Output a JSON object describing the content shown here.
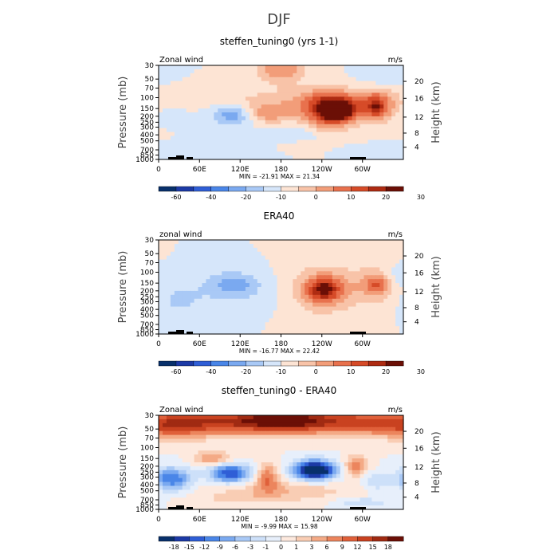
{
  "figure_title": "DJF",
  "chart_data": [
    {
      "type": "heatmap",
      "title": "steffen_tuning0 (yrs 1-1)",
      "left_label": "Zonal wind",
      "right_label": "m/s",
      "stats": "MIN = -21.91   MAX =  21.34",
      "ylabel": "Pressure (mb)",
      "ylabel_right": "Height (km)",
      "yticks": [
        "30",
        "50",
        "70",
        "100",
        "150",
        "200",
        "250",
        "300",
        "400",
        "500",
        "700",
        "850",
        "1000"
      ],
      "height_ticks": [
        "4",
        "8",
        "12",
        "16",
        "20"
      ],
      "xticks": [
        "0",
        "60E",
        "120E",
        "180",
        "120W",
        "60W"
      ],
      "levels": [
        -60,
        -40,
        -20,
        -10,
        0,
        10,
        20,
        30
      ],
      "level_labels": [
        "-60",
        "-40",
        "-20",
        "-10",
        "0",
        "10",
        "20",
        "30"
      ],
      "bins": 14,
      "blobs": [
        {
          "lon": 157,
          "p": 180,
          "amp": 3,
          "w": 27,
          "d": 0.26
        },
        {
          "lon": 112,
          "p": 190,
          "amp": -3,
          "w": 23,
          "d": 0.28
        },
        {
          "lon": 15,
          "p": 200,
          "amp": -1,
          "w": 14,
          "d": 0.18
        },
        {
          "lon": 90,
          "p": 100,
          "amp": 1,
          "w": 55,
          "d": 0.25
        },
        {
          "lon": 265,
          "p": 160,
          "amp": 6,
          "w": 16,
          "d": 0.25
        },
        {
          "lon": 250,
          "p": 170,
          "amp": 5,
          "w": 26,
          "d": 0.45
        },
        {
          "lon": 240,
          "p": 110,
          "amp": 2,
          "w": 55,
          "d": 0.35
        },
        {
          "lon": 180,
          "p": 35,
          "amp": 3,
          "w": 24,
          "d": 0.35
        },
        {
          "lon": 320,
          "p": 140,
          "amp": 4,
          "w": 20,
          "d": 0.4
        },
        {
          "lon": 320,
          "p": 140,
          "amp": 2,
          "w": 6,
          "d": 0.22
        },
        {
          "lon": 330,
          "p": 45,
          "amp": -1,
          "w": 22,
          "d": 0.25
        },
        {
          "lon": 200,
          "p": 400,
          "amp": -1,
          "w": 30,
          "d": 0.25
        },
        {
          "lon": 100,
          "p": 700,
          "amp": -1,
          "w": 40,
          "d": 0.15
        },
        {
          "lon": 300,
          "p": 700,
          "amp": -1,
          "w": 30,
          "d": 0.12
        },
        {
          "lon": 220,
          "p": 600,
          "amp": 1,
          "w": 30,
          "d": 0.15
        }
      ]
    },
    {
      "type": "heatmap",
      "title": "ERA40",
      "left_label": "zonal wind",
      "right_label": "m/s",
      "stats": "MIN = -16.77   MAX =  22.42",
      "ylabel": "Pressure (mb)",
      "ylabel_right": "Height (km)",
      "yticks": [
        "30",
        "50",
        "70",
        "100",
        "150",
        "200",
        "250",
        "300",
        "400",
        "500",
        "700",
        "850",
        "1000"
      ],
      "height_ticks": [
        "4",
        "8",
        "12",
        "16",
        "20"
      ],
      "xticks": [
        "0",
        "60E",
        "120E",
        "180",
        "120W",
        "60W"
      ],
      "levels": [
        -60,
        -40,
        -20,
        -10,
        0,
        10,
        20,
        30
      ],
      "level_labels": [
        "-60",
        "-40",
        "-20",
        "-10",
        "0",
        "10",
        "20",
        "30"
      ],
      "bins": 14,
      "blobs": [
        {
          "lon": 243,
          "p": 190,
          "amp": 4,
          "w": 16,
          "d": 0.28
        },
        {
          "lon": 243,
          "p": 190,
          "amp": 3,
          "w": 34,
          "d": 0.6
        },
        {
          "lon": 320,
          "p": 160,
          "amp": 2,
          "w": 12,
          "d": 0.22
        },
        {
          "lon": 320,
          "p": 160,
          "amp": 2,
          "w": 22,
          "d": 0.5
        },
        {
          "lon": 110,
          "p": 150,
          "amp": -2,
          "w": 22,
          "d": 0.28
        },
        {
          "lon": 100,
          "p": 200,
          "amp": -1,
          "w": 60,
          "d": 0.45
        },
        {
          "lon": 30,
          "p": 300,
          "amp": -1,
          "w": 20,
          "d": 0.35
        },
        {
          "lon": 350,
          "p": 110,
          "amp": -1,
          "w": 12,
          "d": 0.25
        }
      ]
    },
    {
      "type": "heatmap",
      "title": "steffen_tuning0 - ERA40",
      "left_label": "Zonal wind",
      "right_label": "m/s",
      "stats": "MIN =  -9.99   MAX =  15.98",
      "ylabel": "Pressure (mb)",
      "ylabel_right": "Height (km)",
      "yticks": [
        "30",
        "50",
        "70",
        "100",
        "150",
        "200",
        "250",
        "300",
        "400",
        "500",
        "700",
        "850",
        "1000"
      ],
      "height_ticks": [
        "4",
        "8",
        "12",
        "16",
        "20"
      ],
      "xticks": [
        "0",
        "60E",
        "120E",
        "180",
        "120W",
        "60W"
      ],
      "levels": [
        -18,
        -15,
        -12,
        -9,
        -6,
        -3,
        -1,
        0,
        1,
        3,
        6,
        9,
        12,
        15,
        18
      ],
      "level_labels": [
        "-18",
        "-15",
        "-12",
        "-9",
        "-6",
        "-3",
        "-1",
        "0",
        "1",
        "3",
        "6",
        "9",
        "12",
        "15",
        "18"
      ],
      "bins": 16,
      "blobs": [
        {
          "lon": 180,
          "p": 38,
          "amp": 6,
          "w": 250,
          "d": 0.35
        },
        {
          "lon": 180,
          "p": 35,
          "amp": 3,
          "w": 40,
          "d": 0.25
        },
        {
          "lon": 20,
          "p": 50,
          "amp": 2,
          "w": 40,
          "d": 0.3
        },
        {
          "lon": 230,
          "p": 230,
          "amp": -9,
          "w": 22,
          "d": 0.25
        },
        {
          "lon": 230,
          "p": 250,
          "amp": -3,
          "w": 10,
          "d": 0.08
        },
        {
          "lon": 105,
          "p": 260,
          "amp": -6,
          "w": 22,
          "d": 0.25
        },
        {
          "lon": 20,
          "p": 320,
          "amp": -5,
          "w": 20,
          "d": 0.3
        },
        {
          "lon": 160,
          "p": 300,
          "amp": 4,
          "w": 12,
          "d": 0.35
        },
        {
          "lon": 290,
          "p": 200,
          "amp": 4,
          "w": 12,
          "d": 0.25
        },
        {
          "lon": 80,
          "p": 150,
          "amp": 3,
          "w": 20,
          "d": 0.2
        },
        {
          "lon": 180,
          "p": 500,
          "amp": 2,
          "w": 70,
          "d": 0.25
        },
        {
          "lon": 320,
          "p": 350,
          "amp": -2,
          "w": 14,
          "d": 0.25
        },
        {
          "lon": 120,
          "p": 700,
          "amp": 1,
          "w": 50,
          "d": 0.15
        },
        {
          "lon": 300,
          "p": 780,
          "amp": -2,
          "w": 25,
          "d": 0.12
        }
      ]
    }
  ]
}
